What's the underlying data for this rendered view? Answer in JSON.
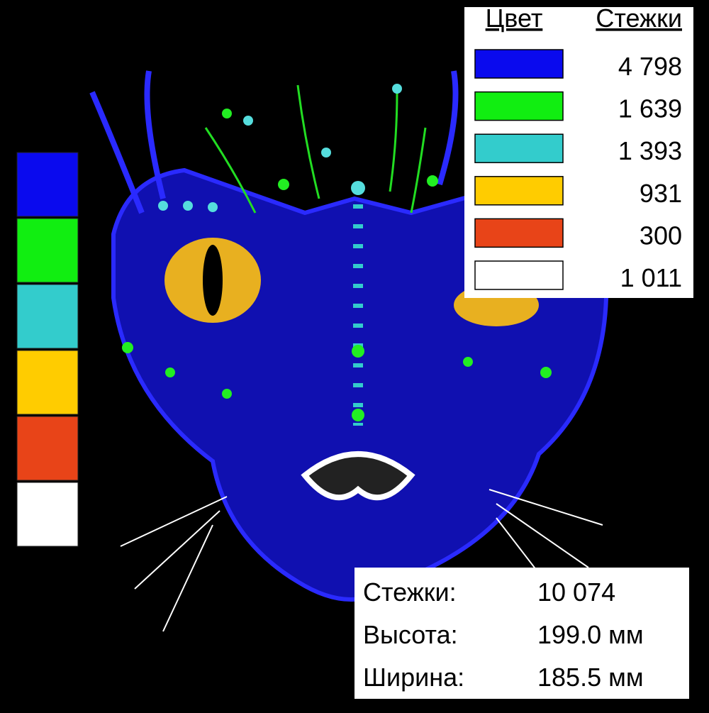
{
  "legend": {
    "headers": [
      "Цвет",
      "Стежки"
    ],
    "rows": [
      {
        "color": "#0a0aee",
        "stitches": "4 798"
      },
      {
        "color": "#11ee11",
        "stitches": "1 639"
      },
      {
        "color": "#33cccc",
        "stitches": "1 393"
      },
      {
        "color": "#ffcc00",
        "stitches": "931"
      },
      {
        "color": "#e84418",
        "stitches": "300"
      },
      {
        "color": "#ffffff",
        "stitches": "1 011"
      }
    ]
  },
  "stats": {
    "rows": [
      [
        "Стежки:",
        "10 074"
      ],
      [
        "Высота:",
        "199.0 мм"
      ],
      [
        "Ширина:",
        "185.5 мм"
      ]
    ]
  }
}
